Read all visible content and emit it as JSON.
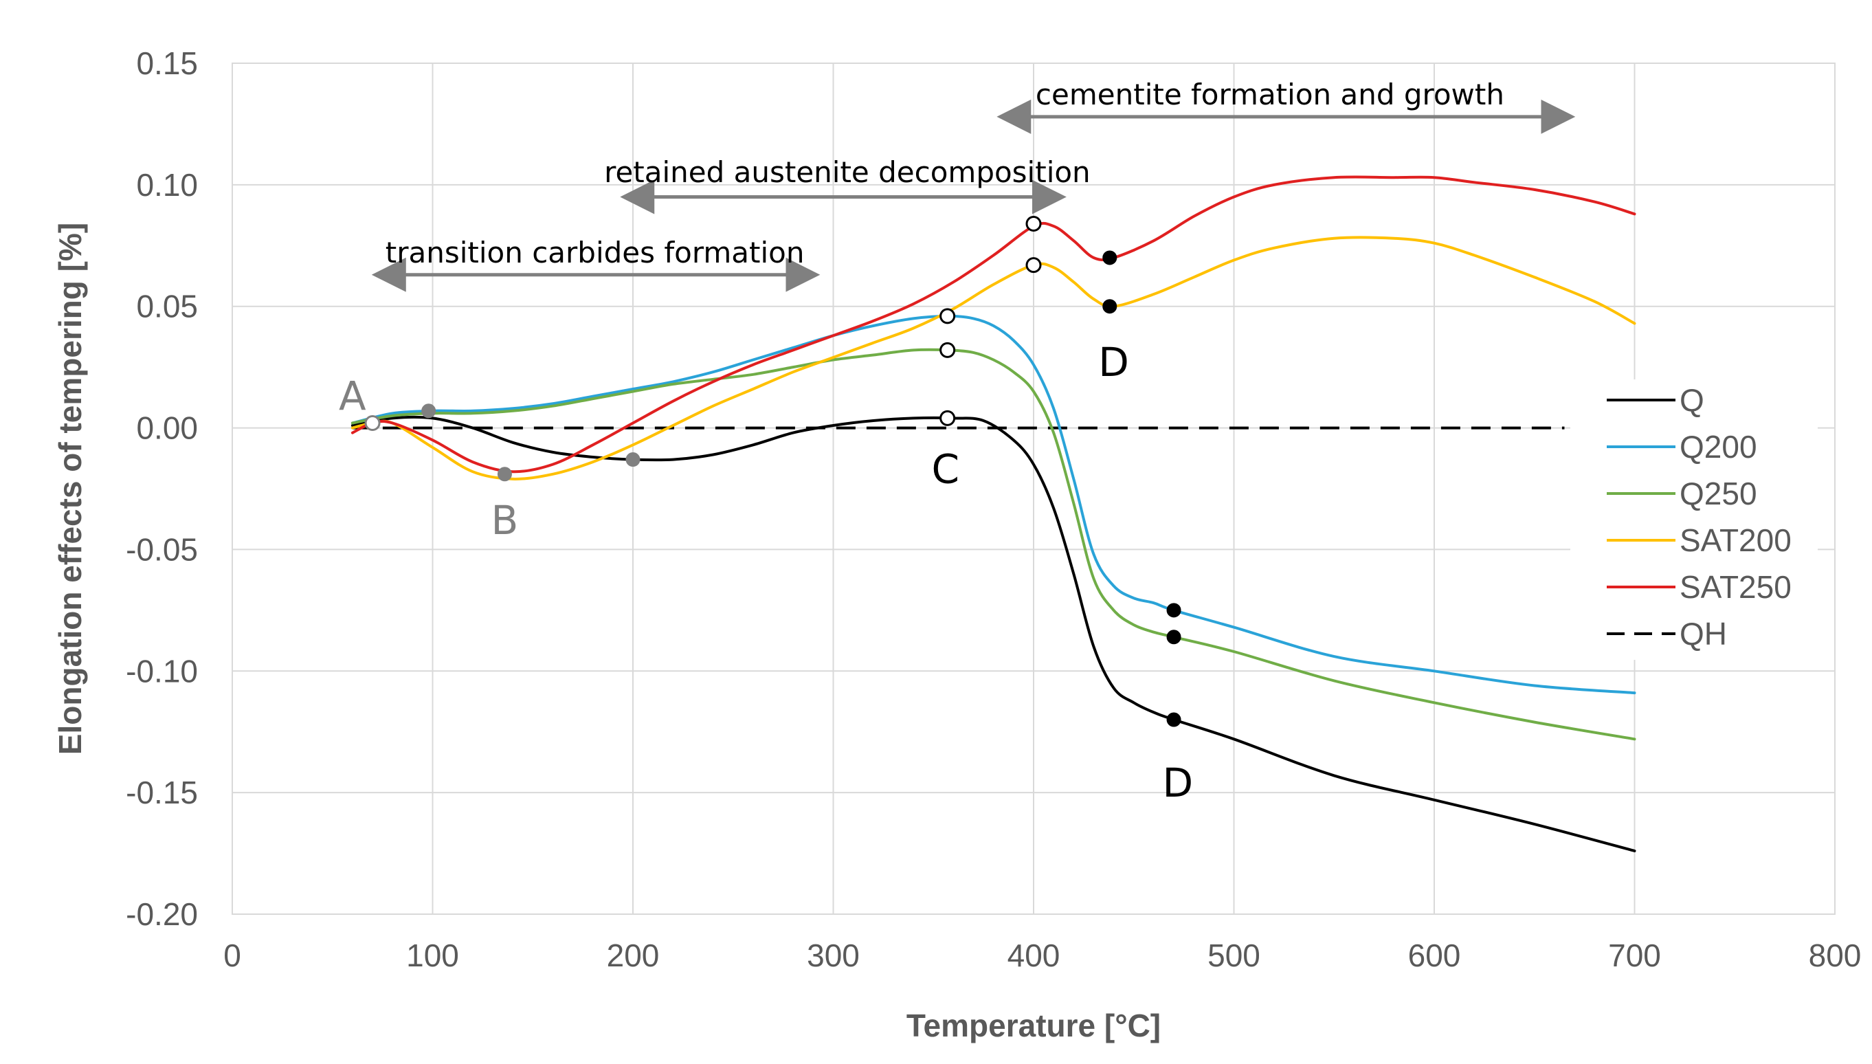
{
  "chart_data": {
    "type": "line",
    "title": "",
    "xlabel": "Temperature [°C]",
    "ylabel": "Elongation effects of tempering [%]",
    "xlim": [
      0,
      800
    ],
    "ylim": [
      -0.2,
      0.15
    ],
    "x_ticks": [
      "0",
      "100",
      "200",
      "300",
      "400",
      "500",
      "600",
      "700",
      "800"
    ],
    "x_tick_values": [
      0,
      100,
      200,
      300,
      400,
      500,
      600,
      700,
      800
    ],
    "y_ticks": [
      "0.15",
      "0.10",
      "0.05",
      "0.00",
      "-0.05",
      "-0.10",
      "-0.15",
      "-0.20"
    ],
    "y_tick_values": [
      0.15,
      0.1,
      0.05,
      0.0,
      -0.05,
      -0.1,
      -0.15,
      -0.2
    ],
    "grid": true,
    "legend_position": "right",
    "series": [
      {
        "name": "Q",
        "color": "#000000",
        "dash": "solid",
        "x": [
          60,
          80,
          100,
          120,
          140,
          160,
          180,
          200,
          220,
          240,
          260,
          280,
          300,
          320,
          340,
          360,
          375,
          390,
          400,
          410,
          420,
          430,
          440,
          450,
          460,
          470,
          500,
          550,
          600,
          650,
          700
        ],
        "y": [
          0.001,
          0.004,
          0.004,
          0.0,
          -0.006,
          -0.01,
          -0.012,
          -0.013,
          -0.013,
          -0.011,
          -0.007,
          -0.002,
          0.001,
          0.003,
          0.004,
          0.004,
          0.003,
          -0.005,
          -0.015,
          -0.033,
          -0.06,
          -0.09,
          -0.107,
          -0.113,
          -0.117,
          -0.12,
          -0.128,
          -0.143,
          -0.153,
          -0.163,
          -0.174
        ]
      },
      {
        "name": "Q200",
        "color": "#2aa3d8",
        "dash": "solid",
        "x": [
          60,
          80,
          100,
          120,
          140,
          160,
          180,
          200,
          220,
          240,
          260,
          280,
          300,
          320,
          340,
          358,
          370,
          380,
          390,
          400,
          410,
          420,
          430,
          440,
          450,
          460,
          470,
          500,
          550,
          600,
          650,
          700
        ],
        "y": [
          0.002,
          0.006,
          0.007,
          0.007,
          0.008,
          0.01,
          0.013,
          0.016,
          0.019,
          0.023,
          0.028,
          0.033,
          0.038,
          0.042,
          0.045,
          0.046,
          0.045,
          0.042,
          0.036,
          0.026,
          0.008,
          -0.021,
          -0.052,
          -0.065,
          -0.07,
          -0.072,
          -0.075,
          -0.082,
          -0.094,
          -0.1,
          -0.106,
          -0.109
        ]
      },
      {
        "name": "Q250",
        "color": "#70ad47",
        "dash": "solid",
        "x": [
          60,
          80,
          100,
          120,
          140,
          160,
          180,
          200,
          220,
          240,
          260,
          280,
          300,
          320,
          340,
          358,
          370,
          380,
          390,
          400,
          410,
          420,
          430,
          440,
          450,
          460,
          470,
          500,
          550,
          600,
          650,
          700
        ],
        "y": [
          0.002,
          0.005,
          0.006,
          0.006,
          0.007,
          0.009,
          0.012,
          0.015,
          0.018,
          0.02,
          0.022,
          0.025,
          0.028,
          0.03,
          0.032,
          0.032,
          0.031,
          0.028,
          0.023,
          0.015,
          -0.002,
          -0.031,
          -0.062,
          -0.075,
          -0.081,
          -0.084,
          -0.086,
          -0.092,
          -0.104,
          -0.113,
          -0.121,
          -0.128
        ]
      },
      {
        "name": "SAT200",
        "color": "#ffc000",
        "dash": "solid",
        "x": [
          60,
          70,
          80,
          100,
          120,
          140,
          160,
          180,
          200,
          220,
          240,
          260,
          280,
          300,
          320,
          340,
          360,
          380,
          400,
          410,
          420,
          430,
          440,
          460,
          480,
          500,
          520,
          550,
          580,
          600,
          620,
          650,
          680,
          700
        ],
        "y": [
          0.0,
          0.002,
          0.002,
          -0.008,
          -0.018,
          -0.021,
          -0.019,
          -0.014,
          -0.007,
          0.001,
          0.009,
          0.016,
          0.023,
          0.029,
          0.035,
          0.041,
          0.049,
          0.059,
          0.067,
          0.066,
          0.06,
          0.053,
          0.05,
          0.055,
          0.062,
          0.069,
          0.074,
          0.078,
          0.078,
          0.076,
          0.071,
          0.062,
          0.052,
          0.043
        ]
      },
      {
        "name": "SAT250",
        "color": "#e02020",
        "dash": "solid",
        "x": [
          60,
          70,
          80,
          100,
          120,
          140,
          160,
          180,
          200,
          220,
          240,
          260,
          280,
          300,
          320,
          340,
          360,
          380,
          400,
          410,
          420,
          430,
          440,
          460,
          480,
          500,
          520,
          550,
          580,
          600,
          620,
          650,
          680,
          700
        ],
        "y": [
          -0.002,
          0.002,
          0.002,
          -0.005,
          -0.014,
          -0.018,
          -0.015,
          -0.007,
          0.002,
          0.011,
          0.019,
          0.026,
          0.032,
          0.038,
          0.044,
          0.051,
          0.06,
          0.071,
          0.083,
          0.083,
          0.077,
          0.07,
          0.07,
          0.077,
          0.087,
          0.095,
          0.1,
          0.103,
          0.103,
          0.103,
          0.101,
          0.098,
          0.093,
          0.088
        ]
      },
      {
        "name": "QH",
        "color": "#000000",
        "dash": "dashed",
        "x": [
          60,
          665
        ],
        "y": [
          0.0,
          0.0
        ]
      }
    ],
    "markers": [
      {
        "x": 70,
        "y": 0.002,
        "style": "open",
        "color": "#808080"
      },
      {
        "x": 98,
        "y": 0.007,
        "style": "filled",
        "color": "#808080"
      },
      {
        "x": 136,
        "y": -0.019,
        "style": "filled",
        "color": "#808080"
      },
      {
        "x": 200,
        "y": -0.013,
        "style": "filled",
        "color": "#808080"
      },
      {
        "x": 357,
        "y": 0.004,
        "style": "open",
        "color": "#000000"
      },
      {
        "x": 357,
        "y": 0.046,
        "style": "open",
        "color": "#000000"
      },
      {
        "x": 357,
        "y": 0.032,
        "style": "open",
        "color": "#000000"
      },
      {
        "x": 400,
        "y": 0.084,
        "style": "open",
        "color": "#000000"
      },
      {
        "x": 400,
        "y": 0.067,
        "style": "open",
        "color": "#000000"
      },
      {
        "x": 438,
        "y": 0.07,
        "style": "filled",
        "color": "#000000"
      },
      {
        "x": 438,
        "y": 0.05,
        "style": "filled",
        "color": "#000000"
      },
      {
        "x": 470,
        "y": -0.075,
        "style": "filled",
        "color": "#000000"
      },
      {
        "x": 470,
        "y": -0.086,
        "style": "filled",
        "color": "#000000"
      },
      {
        "x": 470,
        "y": -0.12,
        "style": "filled",
        "color": "#000000"
      }
    ],
    "point_labels": [
      {
        "text": "A",
        "x": 60,
        "y": 0.013,
        "color": "#808080"
      },
      {
        "text": "B",
        "x": 136,
        "y": -0.038,
        "color": "#808080"
      },
      {
        "text": "C",
        "x": 356,
        "y": -0.017,
        "color": "#000000"
      },
      {
        "text": "D",
        "x": 440,
        "y": 0.027,
        "color": "#000000"
      },
      {
        "text": "D",
        "x": 472,
        "y": -0.146,
        "color": "#000000"
      }
    ],
    "annotations": [
      {
        "text": "transition carbides formation",
        "arrow_from": 73,
        "arrow_to": 290,
        "y": 0.063,
        "text_y": 0.072,
        "text_x": 181
      },
      {
        "text": "retained  austenite decomposition",
        "arrow_from": 197,
        "arrow_to": 413,
        "y": 0.095,
        "text_y": 0.105,
        "text_x": 307
      },
      {
        "text": "cementite formation and growth",
        "arrow_from": 385,
        "arrow_to": 667,
        "y": 0.128,
        "text_y": 0.137,
        "text_x": 518
      }
    ]
  }
}
